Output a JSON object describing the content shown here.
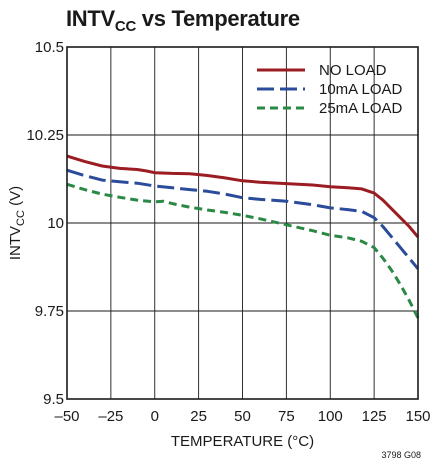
{
  "chart_data": {
    "type": "line",
    "title": {
      "main": "INTV",
      "sub": "CC",
      "rest": " vs Temperature"
    },
    "xlabel": "TEMPERATURE (°C)",
    "ylabel": {
      "main": "INTV",
      "sub": "CC",
      "rest": " (V)"
    },
    "xlim": [
      -50,
      150
    ],
    "ylim": [
      9.5,
      10.5
    ],
    "xticks": [
      -50,
      -25,
      0,
      25,
      50,
      75,
      100,
      125,
      150
    ],
    "xtick_labels": [
      "–50",
      "–25",
      "0",
      "25",
      "50",
      "75",
      "100",
      "125",
      "150"
    ],
    "yticks": [
      9.5,
      9.75,
      10,
      10.25,
      10.5
    ],
    "ytick_labels": [
      "9.5",
      "9.75",
      "10",
      "10.25",
      "10.5"
    ],
    "grid": true,
    "legend_position": "top-right",
    "series": [
      {
        "name": "NO LOAD",
        "color": "#9b1c22",
        "dash": "solid",
        "points": [
          [
            -50,
            10.19
          ],
          [
            -40,
            10.175
          ],
          [
            -30,
            10.162
          ],
          [
            -20,
            10.155
          ],
          [
            -10,
            10.152
          ],
          [
            -5,
            10.148
          ],
          [
            0,
            10.143
          ],
          [
            10,
            10.141
          ],
          [
            20,
            10.14
          ],
          [
            30,
            10.135
          ],
          [
            40,
            10.128
          ],
          [
            50,
            10.12
          ],
          [
            60,
            10.116
          ],
          [
            75,
            10.112
          ],
          [
            90,
            10.108
          ],
          [
            100,
            10.103
          ],
          [
            110,
            10.1
          ],
          [
            118,
            10.097
          ],
          [
            125,
            10.085
          ],
          [
            130,
            10.065
          ],
          [
            135,
            10.04
          ],
          [
            140,
            10.015
          ],
          [
            145,
            9.99
          ],
          [
            150,
            9.96
          ]
        ]
      },
      {
        "name": "10mA LOAD",
        "color": "#2b4b9b",
        "dash": "long",
        "points": [
          [
            -50,
            10.15
          ],
          [
            -40,
            10.135
          ],
          [
            -30,
            10.122
          ],
          [
            -20,
            10.117
          ],
          [
            -10,
            10.113
          ],
          [
            0,
            10.105
          ],
          [
            10,
            10.1
          ],
          [
            20,
            10.095
          ],
          [
            30,
            10.09
          ],
          [
            40,
            10.082
          ],
          [
            50,
            10.072
          ],
          [
            60,
            10.067
          ],
          [
            75,
            10.062
          ],
          [
            90,
            10.052
          ],
          [
            100,
            10.043
          ],
          [
            110,
            10.038
          ],
          [
            118,
            10.033
          ],
          [
            125,
            10.015
          ],
          [
            130,
            9.99
          ],
          [
            135,
            9.96
          ],
          [
            140,
            9.93
          ],
          [
            145,
            9.9
          ],
          [
            150,
            9.87
          ]
        ]
      },
      {
        "name": "25mA LOAD",
        "color": "#2a8a45",
        "dash": "short",
        "points": [
          [
            -50,
            10.11
          ],
          [
            -40,
            10.095
          ],
          [
            -30,
            10.082
          ],
          [
            -20,
            10.073
          ],
          [
            -10,
            10.065
          ],
          [
            0,
            10.06
          ],
          [
            5,
            10.062
          ],
          [
            10,
            10.055
          ],
          [
            20,
            10.045
          ],
          [
            30,
            10.037
          ],
          [
            40,
            10.03
          ],
          [
            50,
            10.022
          ],
          [
            60,
            10.012
          ],
          [
            75,
            9.995
          ],
          [
            90,
            9.978
          ],
          [
            100,
            9.965
          ],
          [
            110,
            9.958
          ],
          [
            118,
            9.948
          ],
          [
            125,
            9.93
          ],
          [
            130,
            9.9
          ],
          [
            135,
            9.865
          ],
          [
            140,
            9.825
          ],
          [
            145,
            9.78
          ],
          [
            150,
            9.73
          ]
        ]
      }
    ]
  },
  "figure_id": "3798 G08"
}
